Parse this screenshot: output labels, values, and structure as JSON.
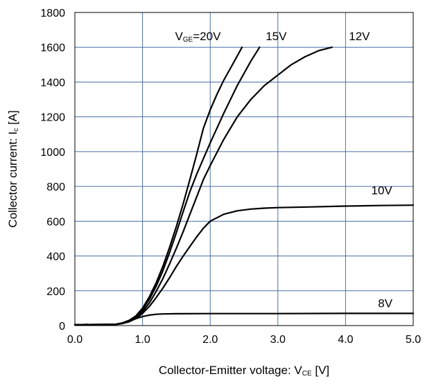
{
  "chart_data": {
    "type": "line",
    "title": "",
    "xlabel": {
      "main": "Collector-Emitter voltage: V",
      "sub": "CE",
      "unit": " [V]"
    },
    "ylabel": {
      "main": "Collector current: I",
      "sub": "c",
      "unit": " [A]"
    },
    "xlim": [
      0,
      5
    ],
    "ylim": [
      0,
      1800
    ],
    "xticks": [
      0,
      1,
      2,
      3,
      4,
      5
    ],
    "xtick_labels": [
      "0.0",
      "1.0",
      "2.0",
      "3.0",
      "4.0",
      "5.0"
    ],
    "yticks": [
      0,
      200,
      400,
      600,
      800,
      1000,
      1200,
      1400,
      1600,
      1800
    ],
    "ytick_labels": [
      "0",
      "200",
      "400",
      "600",
      "800",
      "1000",
      "1200",
      "1400",
      "1600",
      "1800"
    ],
    "grid": true,
    "grid_color": "#4a6fa5",
    "line_color": "#000000",
    "series": [
      {
        "id": "vge-20",
        "label": {
          "main": "V",
          "sub": "GE",
          "rest": "=20V"
        },
        "label_anchor": {
          "x": 1.48,
          "y": 1640
        },
        "points": [
          [
            0,
            5
          ],
          [
            0.6,
            7
          ],
          [
            0.7,
            15
          ],
          [
            0.8,
            30
          ],
          [
            0.9,
            55
          ],
          [
            1.0,
            100
          ],
          [
            1.1,
            165
          ],
          [
            1.2,
            245
          ],
          [
            1.3,
            340
          ],
          [
            1.4,
            450
          ],
          [
            1.5,
            570
          ],
          [
            1.6,
            700
          ],
          [
            1.7,
            840
          ],
          [
            1.8,
            985
          ],
          [
            1.9,
            1135
          ],
          [
            2.0,
            1240
          ],
          [
            2.1,
            1330
          ],
          [
            2.2,
            1410
          ],
          [
            2.3,
            1480
          ],
          [
            2.4,
            1550
          ],
          [
            2.47,
            1600
          ]
        ]
      },
      {
        "id": "vge-15",
        "label": {
          "main": "15V"
        },
        "label_anchor": {
          "x": 2.82,
          "y": 1640
        },
        "points": [
          [
            0,
            5
          ],
          [
            0.6,
            7
          ],
          [
            0.7,
            14
          ],
          [
            0.8,
            28
          ],
          [
            0.9,
            52
          ],
          [
            1.0,
            92
          ],
          [
            1.1,
            150
          ],
          [
            1.2,
            225
          ],
          [
            1.3,
            315
          ],
          [
            1.4,
            420
          ],
          [
            1.5,
            535
          ],
          [
            1.6,
            655
          ],
          [
            1.7,
            770
          ],
          [
            1.8,
            870
          ],
          [
            1.9,
            960
          ],
          [
            2.0,
            1050
          ],
          [
            2.2,
            1220
          ],
          [
            2.4,
            1380
          ],
          [
            2.6,
            1520
          ],
          [
            2.73,
            1600
          ]
        ]
      },
      {
        "id": "vge-12",
        "label": {
          "main": "12V"
        },
        "label_anchor": {
          "x": 4.05,
          "y": 1640
        },
        "points": [
          [
            0,
            5
          ],
          [
            0.6,
            7
          ],
          [
            0.7,
            13
          ],
          [
            0.8,
            25
          ],
          [
            0.9,
            45
          ],
          [
            1.0,
            80
          ],
          [
            1.1,
            130
          ],
          [
            1.2,
            195
          ],
          [
            1.3,
            270
          ],
          [
            1.4,
            355
          ],
          [
            1.5,
            445
          ],
          [
            1.6,
            540
          ],
          [
            1.7,
            640
          ],
          [
            1.8,
            740
          ],
          [
            1.9,
            840
          ],
          [
            2.0,
            920
          ],
          [
            2.2,
            1070
          ],
          [
            2.4,
            1200
          ],
          [
            2.6,
            1300
          ],
          [
            2.8,
            1380
          ],
          [
            3.0,
            1440
          ],
          [
            3.2,
            1500
          ],
          [
            3.4,
            1545
          ],
          [
            3.6,
            1580
          ],
          [
            3.8,
            1600
          ]
        ]
      },
      {
        "id": "vge-10",
        "label": {
          "main": "10V"
        },
        "label_anchor": {
          "x": 4.38,
          "y": 755
        },
        "points": [
          [
            0,
            5
          ],
          [
            0.6,
            7
          ],
          [
            0.7,
            12
          ],
          [
            0.8,
            22
          ],
          [
            0.9,
            40
          ],
          [
            1.0,
            70
          ],
          [
            1.1,
            110
          ],
          [
            1.2,
            160
          ],
          [
            1.3,
            215
          ],
          [
            1.4,
            275
          ],
          [
            1.5,
            340
          ],
          [
            1.6,
            400
          ],
          [
            1.7,
            455
          ],
          [
            1.8,
            510
          ],
          [
            1.9,
            560
          ],
          [
            2.0,
            600
          ],
          [
            2.2,
            640
          ],
          [
            2.4,
            660
          ],
          [
            2.6,
            670
          ],
          [
            2.8,
            675
          ],
          [
            3.0,
            678
          ],
          [
            3.5,
            682
          ],
          [
            4.0,
            687
          ],
          [
            4.5,
            690
          ],
          [
            5.0,
            692
          ]
        ]
      },
      {
        "id": "vge-8",
        "label": {
          "main": "8V"
        },
        "label_anchor": {
          "x": 4.48,
          "y": 105
        },
        "points": [
          [
            0,
            5
          ],
          [
            0.6,
            6
          ],
          [
            0.7,
            12
          ],
          [
            0.8,
            25
          ],
          [
            0.9,
            40
          ],
          [
            1.0,
            52
          ],
          [
            1.1,
            60
          ],
          [
            1.2,
            65
          ],
          [
            1.3,
            67
          ],
          [
            1.5,
            68
          ],
          [
            2.0,
            69
          ],
          [
            3.0,
            69
          ],
          [
            4.0,
            70
          ],
          [
            5.0,
            70
          ]
        ]
      }
    ]
  }
}
